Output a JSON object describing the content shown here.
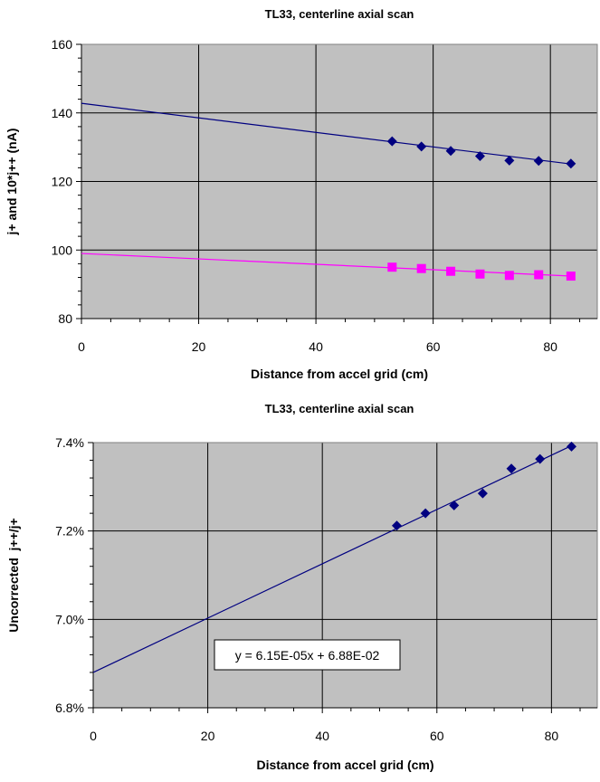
{
  "chart_data": [
    {
      "type": "scatter",
      "title": "TL33, centerline axial scan",
      "xlabel": "Distance from accel grid (cm)",
      "ylabel": "j+ and 10*j++ (nA)",
      "xlim": [
        0,
        88
      ],
      "ylim": [
        80,
        160
      ],
      "x_ticks": [
        0,
        20,
        40,
        60,
        80
      ],
      "x_tick_labels": [
        "0",
        "20",
        "40",
        "60",
        "80"
      ],
      "y_ticks": [
        80,
        100,
        120,
        140,
        160
      ],
      "y_tick_labels": [
        "80",
        "100",
        "120",
        "140",
        "160"
      ],
      "grid": true,
      "plot_background": "#c0c0c0",
      "series": [
        {
          "marker": "diamond",
          "color": "#000080",
          "x": [
            53,
            58,
            63,
            68,
            73,
            78,
            83.5
          ],
          "y": [
            131.7,
            130.2,
            128.9,
            127.4,
            126.1,
            126.0,
            125.2
          ],
          "trendline": {
            "x": [
              0,
              83.5
            ],
            "y": [
              142.8,
              125.1
            ]
          }
        },
        {
          "marker": "square",
          "color": "#ff00ff",
          "x": [
            53,
            58,
            63,
            68,
            73,
            78,
            83.5
          ],
          "y": [
            95.0,
            94.6,
            93.8,
            93.0,
            92.6,
            92.8,
            92.4
          ],
          "trendline": {
            "x": [
              0,
              83.5
            ],
            "y": [
              99.0,
              92.4
            ]
          }
        }
      ]
    },
    {
      "type": "scatter",
      "title": "TL33, centerline axial scan",
      "xlabel": "Distance from accel grid (cm)",
      "ylabel": "Uncorrected  j++/j+",
      "xlim": [
        0,
        88
      ],
      "ylim": [
        0.068,
        0.074
      ],
      "x_ticks": [
        0,
        20,
        40,
        60,
        80
      ],
      "x_tick_labels": [
        "0",
        "20",
        "40",
        "60",
        "80"
      ],
      "y_ticks": [
        0.068,
        0.07,
        0.072,
        0.074
      ],
      "y_tick_labels": [
        "6.8%",
        "7.0%",
        "7.2%",
        "7.4%"
      ],
      "grid": true,
      "plot_background": "#c0c0c0",
      "series": [
        {
          "marker": "diamond",
          "color": "#000080",
          "x": [
            53,
            58,
            63,
            68,
            73,
            78,
            83.5
          ],
          "y": [
            0.07212,
            0.0724,
            0.07258,
            0.07285,
            0.07341,
            0.07363,
            0.07391
          ],
          "trendline": {
            "x": [
              0,
              83.5
            ],
            "y": [
              0.0688,
              0.07393
            ]
          }
        }
      ],
      "annotation": "y = 6.15E-05x + 6.88E-02"
    }
  ]
}
